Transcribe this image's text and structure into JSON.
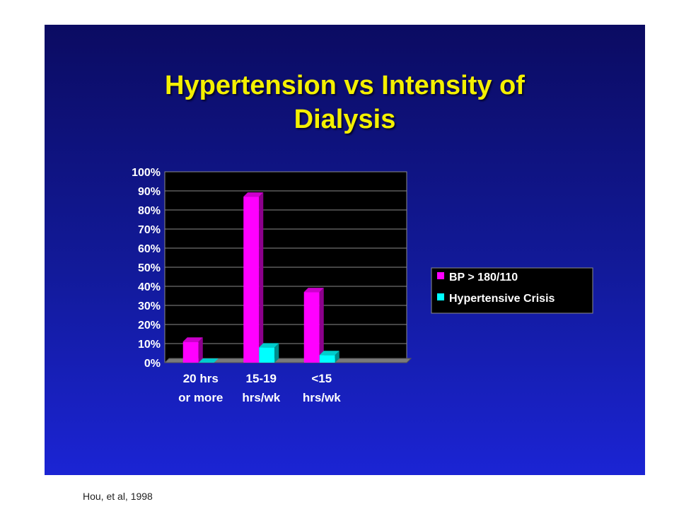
{
  "slide": {
    "title_line1": "Hypertension vs Intensity of",
    "title_line2": "Dialysis"
  },
  "footer": {
    "citation": "Hou, et al, 1998"
  },
  "chart_data": {
    "type": "bar",
    "categories": [
      [
        "20 hrs",
        "or more"
      ],
      [
        "15-19",
        "hrs/wk"
      ],
      [
        "<15",
        "hrs/wk"
      ]
    ],
    "series": [
      {
        "name": "BP > 180/110",
        "color": "#ff00ff",
        "values": [
          11,
          87,
          37
        ]
      },
      {
        "name": "Hypertensive Crisis",
        "color": "#00ffff",
        "values": [
          0,
          8,
          4
        ]
      }
    ],
    "ylim": [
      0,
      100
    ],
    "yticks": [
      "0%",
      "10%",
      "20%",
      "30%",
      "40%",
      "50%",
      "60%",
      "70%",
      "80%",
      "90%",
      "100%"
    ],
    "grid": true,
    "legend_position": "right",
    "title": "",
    "xlabel": "",
    "ylabel": ""
  }
}
